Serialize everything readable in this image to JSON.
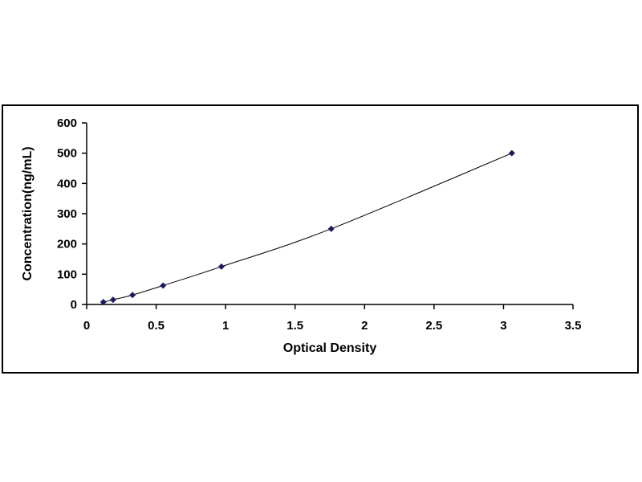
{
  "chart_data": {
    "type": "scatter",
    "title": "",
    "xlabel": "Optical Density",
    "ylabel": "Concentration(ng/mL)",
    "xlim": [
      0,
      3.5
    ],
    "ylim": [
      0,
      600
    ],
    "x_ticks": [
      0,
      0.5,
      1,
      1.5,
      2,
      2.5,
      3,
      3.5
    ],
    "x_tick_labels": [
      "0",
      "0.5",
      "1",
      "1.5",
      "2",
      "2.5",
      "3",
      "3.5"
    ],
    "y_ticks": [
      0,
      100,
      200,
      300,
      400,
      500,
      600
    ],
    "y_tick_labels": [
      "0",
      "100",
      "200",
      "300",
      "400",
      "500",
      "600"
    ],
    "grid": false,
    "legend": "none",
    "marker": "diamond",
    "trendline": "smooth",
    "color": "#1a1a5e",
    "series": [
      {
        "x": [
          0.12,
          0.19,
          0.33,
          0.55,
          0.97,
          1.76,
          3.06
        ],
        "y": [
          7.8,
          15.6,
          31.2,
          62.5,
          125,
          250,
          500
        ]
      }
    ]
  }
}
